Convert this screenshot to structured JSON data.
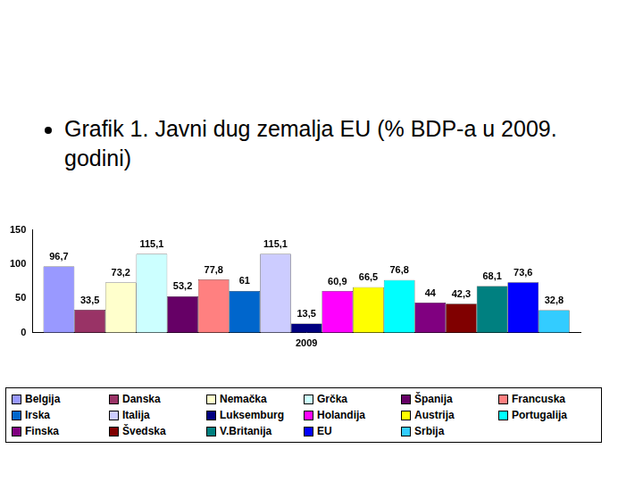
{
  "chart_data": {
    "type": "bar",
    "title": "Grafik 1. Javni dug zemalja EU (% BDP-a u 2009. godini)",
    "categories": [
      "2009"
    ],
    "series": [
      {
        "name": "Belgija",
        "color": "#9999ff",
        "values": [
          96.7
        ],
        "value_labels": [
          "96,7"
        ]
      },
      {
        "name": "Danska",
        "color": "#993366",
        "values": [
          33.5
        ],
        "value_labels": [
          "33,5"
        ]
      },
      {
        "name": "Nemačka",
        "color": "#ffffcc",
        "values": [
          73.2
        ],
        "value_labels": [
          "73,2"
        ]
      },
      {
        "name": "Grčka",
        "color": "#ccffff",
        "values": [
          115.1
        ],
        "value_labels": [
          "115,1"
        ]
      },
      {
        "name": "Španija",
        "color": "#660066",
        "values": [
          53.2
        ],
        "value_labels": [
          "53,2"
        ]
      },
      {
        "name": "Francuska",
        "color": "#ff8080",
        "values": [
          77.8
        ],
        "value_labels": [
          "77,8"
        ]
      },
      {
        "name": "Irska",
        "color": "#0066cc",
        "values": [
          61
        ],
        "value_labels": [
          "61"
        ]
      },
      {
        "name": "Italija",
        "color": "#ccccff",
        "values": [
          115.1
        ],
        "value_labels": [
          "115,1"
        ]
      },
      {
        "name": "Luksemburg",
        "color": "#000080",
        "values": [
          13.5
        ],
        "value_labels": [
          "13,5"
        ]
      },
      {
        "name": "Holandija",
        "color": "#ff00ff",
        "values": [
          60.9
        ],
        "value_labels": [
          "60,9"
        ]
      },
      {
        "name": "Austrija",
        "color": "#ffff00",
        "values": [
          66.5
        ],
        "value_labels": [
          "66,5"
        ]
      },
      {
        "name": "Portugalija",
        "color": "#00ffff",
        "values": [
          76.8
        ],
        "value_labels": [
          "76,8"
        ]
      },
      {
        "name": "Finska",
        "color": "#800080",
        "values": [
          44
        ],
        "value_labels": [
          "44"
        ]
      },
      {
        "name": "Švedska",
        "color": "#800000",
        "values": [
          42.3
        ],
        "value_labels": [
          "42,3"
        ]
      },
      {
        "name": "V.Britanija",
        "color": "#008080",
        "values": [
          68.1
        ],
        "value_labels": [
          "68,1"
        ]
      },
      {
        "name": "EU",
        "color": "#0000ff",
        "values": [
          73.6
        ],
        "value_labels": [
          "73,6"
        ]
      },
      {
        "name": "Srbija",
        "color": "#33ccff",
        "values": [
          32.8
        ],
        "value_labels": [
          "32,8"
        ]
      }
    ],
    "ylim": [
      0,
      150
    ],
    "yticks": [
      0,
      50,
      100,
      150
    ],
    "grid": false,
    "legend": "bottom",
    "data_labels": true
  }
}
